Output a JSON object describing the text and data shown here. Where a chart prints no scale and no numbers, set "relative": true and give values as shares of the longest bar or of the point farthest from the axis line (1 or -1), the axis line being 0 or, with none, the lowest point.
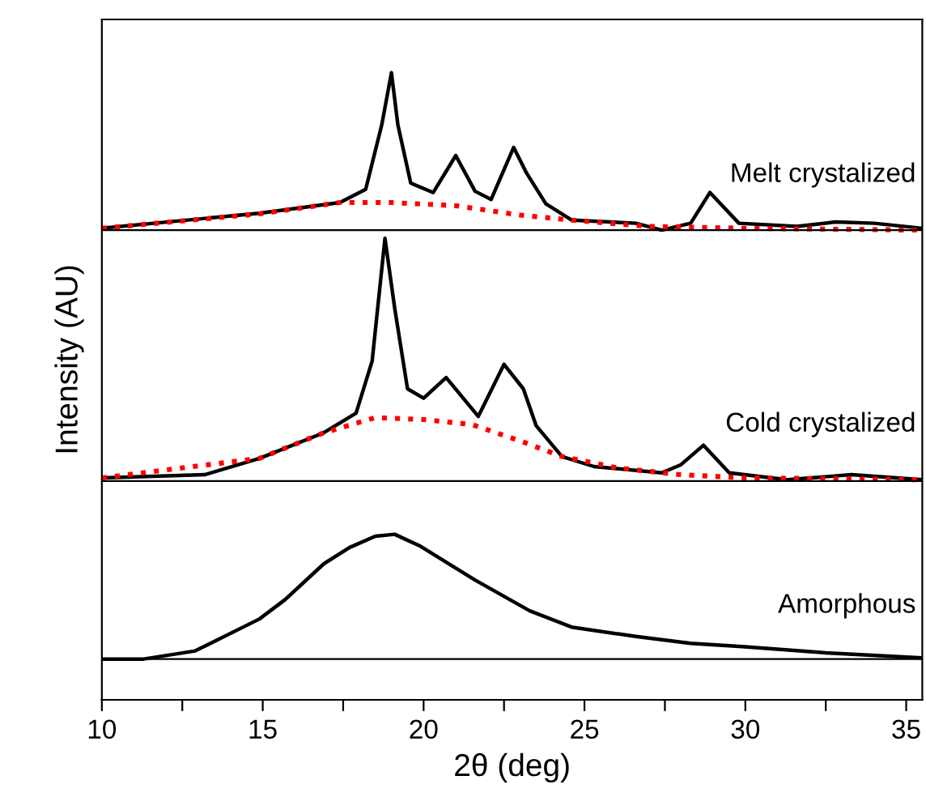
{
  "chart_data": {
    "type": "line",
    "relative": true,
    "xlabel": "2θ (deg)",
    "ylabel": "Intensity (AU)",
    "xlim": [
      10,
      35.5
    ],
    "xticks": [
      10,
      {
        "value": 12.5,
        "label": null
      },
      15,
      {
        "value": 17.5,
        "label": null
      },
      20,
      {
        "value": 22.5,
        "label": null
      },
      25,
      {
        "value": 27.5,
        "label": null
      },
      30,
      {
        "value": 32.5,
        "label": null
      },
      35
    ],
    "tick_labels": "x",
    "grid": false,
    "legend": false,
    "marker": "none",
    "series": [
      {
        "name": "Melt crystalized",
        "color": "#000000",
        "line_style": "solid",
        "x": [
          10,
          14.9,
          17.4,
          18.2,
          18.7,
          19.0,
          19.2,
          19.6,
          20.3,
          21.0,
          21.6,
          22.1,
          22.8,
          23.2,
          23.8,
          24.6,
          26.6,
          27.4,
          28.3,
          28.9,
          29.8,
          31.6,
          32.8,
          34.0,
          35.5
        ],
        "values": [
          0.752,
          0.776,
          0.793,
          0.814,
          0.917,
          1.0,
          0.917,
          0.824,
          0.809,
          0.868,
          0.811,
          0.798,
          0.881,
          0.84,
          0.791,
          0.765,
          0.76,
          0.749,
          0.76,
          0.809,
          0.76,
          0.755,
          0.762,
          0.76,
          0.752
        ]
      },
      {
        "color": "#ff0000",
        "line_style": "dotted",
        "x": [
          10,
          14.9,
          17.4,
          19,
          21,
          23,
          24.6,
          27,
          30,
          35.5
        ],
        "values": [
          0.752,
          0.775,
          0.793,
          0.793,
          0.788,
          0.773,
          0.765,
          0.755,
          0.752,
          0.749
        ]
      },
      {
        "name": "Cold crystalized",
        "color": "#000000",
        "line_style": "solid",
        "x": [
          10,
          13.2,
          14.9,
          16.9,
          17.9,
          18.4,
          18.8,
          19.1,
          19.5,
          20.0,
          20.7,
          21.7,
          22.5,
          23.1,
          23.5,
          24.3,
          25.3,
          27.4,
          28.0,
          28.7,
          29.5,
          31.3,
          33.3,
          35.5
        ],
        "values": [
          0.354,
          0.359,
          0.385,
          0.426,
          0.457,
          0.54,
          0.736,
          0.625,
          0.496,
          0.481,
          0.514,
          0.452,
          0.535,
          0.496,
          0.437,
          0.388,
          0.372,
          0.362,
          0.375,
          0.406,
          0.362,
          0.351,
          0.359,
          0.351
        ]
      },
      {
        "color": "#ff0000",
        "line_style": "dotted",
        "x": [
          10,
          14.9,
          16.9,
          18.5,
          20,
          21.5,
          23,
          24.3,
          26,
          28,
          30,
          35.5
        ],
        "values": [
          0.354,
          0.385,
          0.426,
          0.45,
          0.447,
          0.439,
          0.413,
          0.388,
          0.37,
          0.359,
          0.354,
          0.351
        ]
      },
      {
        "name": "Amorphous",
        "color": "#000000",
        "line_style": "solid",
        "x": [
          10,
          11.3,
          12.9,
          14.9,
          15.7,
          16.9,
          17.7,
          18.5,
          19.1,
          19.9,
          21.6,
          23.3,
          24.6,
          26.6,
          28.3,
          29.9,
          32.5,
          35.5
        ],
        "values": [
          0.065,
          0.065,
          0.078,
          0.129,
          0.16,
          0.217,
          0.243,
          0.261,
          0.264,
          0.245,
          0.191,
          0.142,
          0.116,
          0.101,
          0.09,
          0.085,
          0.075,
          0.067
        ]
      }
    ],
    "ref_lines": [
      {
        "axis": "y",
        "value": 0.749,
        "color": "#000000"
      },
      {
        "axis": "y",
        "value": 0.349,
        "color": "#000000"
      },
      {
        "axis": "y",
        "value": 0.065,
        "color": "#000000"
      }
    ]
  }
}
